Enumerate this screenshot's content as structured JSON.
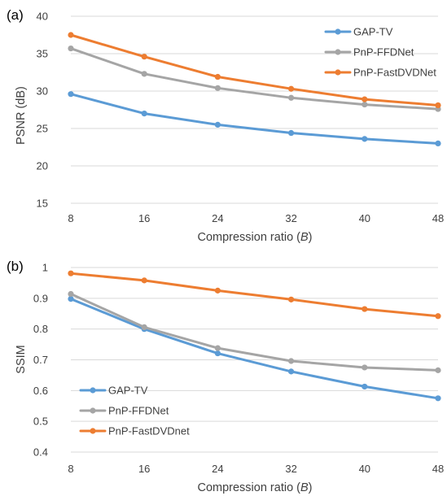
{
  "chart_data": [
    {
      "type": "line",
      "panel_label": "(a)",
      "x": [
        8,
        16,
        24,
        32,
        40,
        48
      ],
      "xlabel_text": "Compression ratio (",
      "xlabel_var": "B",
      "xlabel_close": ")",
      "ylabel": "PSNR (dB)",
      "ylim": [
        15,
        40
      ],
      "yticks": [
        15,
        20,
        25,
        30,
        35,
        40
      ],
      "grid": true,
      "legend_position": "top-right",
      "series": [
        {
          "name": "GAP-TV",
          "color": "#5b9bd5",
          "values": [
            29.6,
            27.0,
            25.5,
            24.4,
            23.6,
            23.0
          ]
        },
        {
          "name": "PnP-FFDNet",
          "color": "#a5a5a5",
          "values": [
            35.7,
            32.3,
            30.4,
            29.1,
            28.2,
            27.6
          ]
        },
        {
          "name": "PnP-FastDVDNet",
          "color": "#ed7d31",
          "values": [
            37.5,
            34.6,
            31.9,
            30.3,
            28.9,
            28.1
          ]
        }
      ]
    },
    {
      "type": "line",
      "panel_label": "(b)",
      "x": [
        8,
        16,
        24,
        32,
        40,
        48
      ],
      "xlabel_text": "Compression ratio (",
      "xlabel_var": "B",
      "xlabel_close": ")",
      "ylabel": "SSIM",
      "ylim": [
        0.4,
        1.0
      ],
      "yticks": [
        0.4,
        0.5,
        0.6,
        0.7,
        0.8,
        0.9,
        1
      ],
      "grid": true,
      "legend_position": "bottom-left",
      "series": [
        {
          "name": "GAP-TV",
          "color": "#5b9bd5",
          "values": [
            0.898,
            0.8,
            0.721,
            0.662,
            0.613,
            0.575
          ]
        },
        {
          "name": "PnP-FFDNet",
          "color": "#a5a5a5",
          "values": [
            0.914,
            0.806,
            0.738,
            0.696,
            0.675,
            0.666
          ]
        },
        {
          "name": "PnP-FastDVDnet",
          "color": "#ed7d31",
          "values": [
            0.981,
            0.958,
            0.925,
            0.896,
            0.865,
            0.842
          ]
        }
      ]
    }
  ]
}
